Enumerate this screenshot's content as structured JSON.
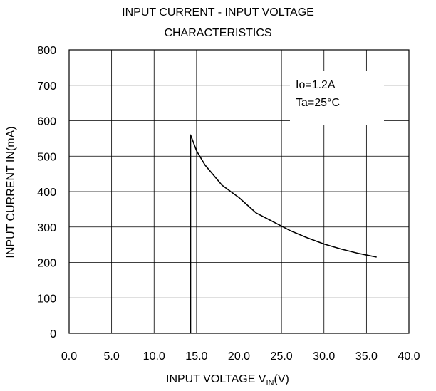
{
  "chart_data": {
    "type": "line",
    "title_line1": "INPUT CURRENT - INPUT VOLTAGE",
    "title_line2": "CHARACTERISTICS",
    "xlabel_prefix": "INPUT VOLTAGE V",
    "xlabel_sub": "IN",
    "xlabel_suffix": "(V)",
    "ylabel": "INPUT CURRENT IN(mA)",
    "xlim": [
      0,
      40
    ],
    "ylim": [
      0,
      800
    ],
    "x_ticks": [
      0,
      5,
      10,
      15,
      20,
      25,
      30,
      35,
      40
    ],
    "x_tick_labels": [
      "0.0",
      "5.0",
      "10.0",
      "15.0",
      "20.0",
      "25.0",
      "30.0",
      "35.0",
      "40.0"
    ],
    "y_ticks": [
      0,
      100,
      200,
      300,
      400,
      500,
      600,
      700,
      800
    ],
    "y_tick_labels": [
      "0",
      "100",
      "200",
      "300",
      "400",
      "500",
      "600",
      "700",
      "800"
    ],
    "grid": true,
    "annotations": [
      "Io=1.2A",
      "Ta=25°C"
    ],
    "series": [
      {
        "x": [
          14.3,
          14.3,
          15.0,
          16.0,
          18.0,
          20.0,
          22.0,
          24.0,
          26.0,
          28.0,
          30.0,
          32.0,
          34.0,
          36.2
        ],
        "values": [
          0,
          560,
          515,
          475,
          418,
          383,
          340,
          315,
          290,
          270,
          252,
          238,
          226,
          215
        ]
      }
    ]
  }
}
